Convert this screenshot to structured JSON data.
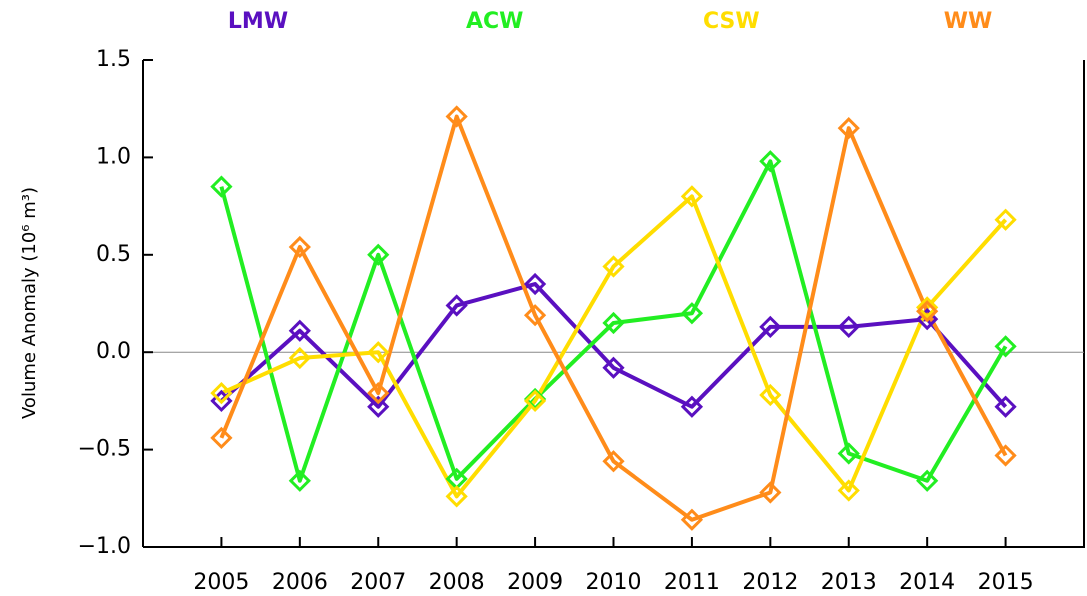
{
  "chart_data": {
    "type": "line",
    "y_label": "Volume Anomaly (10⁶ m³)",
    "x": [
      2005,
      2006,
      2007,
      2008,
      2009,
      2010,
      2011,
      2012,
      2013,
      2014,
      2015
    ],
    "xlim": [
      2004,
      2016
    ],
    "xticks": [
      2005,
      2006,
      2007,
      2008,
      2009,
      2010,
      2011,
      2012,
      2013,
      2014,
      2015
    ],
    "ylim": [
      -1.0,
      1.5
    ],
    "yticks": [
      {
        "value": -1,
        "label": "−1.0"
      },
      {
        "value": -0.5,
        "label": "−0.5"
      },
      {
        "value": 0,
        "label": "0.0"
      },
      0.5,
      {
        "value": 1,
        "label": "1.0"
      },
      1.5
    ],
    "series": [
      {
        "name": "LMW",
        "color": "#5a10c0",
        "values": [
          -0.25,
          0.11,
          -0.28,
          0.24,
          0.35,
          -0.08,
          -0.28,
          0.13,
          0.13,
          0.17,
          -0.28
        ]
      },
      {
        "name": "ACW",
        "color": "#22ee22",
        "values": [
          0.85,
          -0.66,
          0.5,
          -0.65,
          -0.24,
          0.15,
          0.2,
          0.98,
          -0.52,
          -0.66,
          0.03
        ]
      },
      {
        "name": "CSW",
        "color": "#ffdd00",
        "values": [
          -0.21,
          -0.03,
          0.0,
          -0.74,
          -0.25,
          0.44,
          0.8,
          -0.22,
          -0.71,
          0.23,
          0.68
        ]
      },
      {
        "name": "WW",
        "color": "#ff8c1a",
        "values": [
          -0.44,
          0.54,
          -0.21,
          1.21,
          0.19,
          -0.56,
          -0.86,
          -0.72,
          1.15,
          0.21,
          -0.53
        ]
      }
    ]
  }
}
